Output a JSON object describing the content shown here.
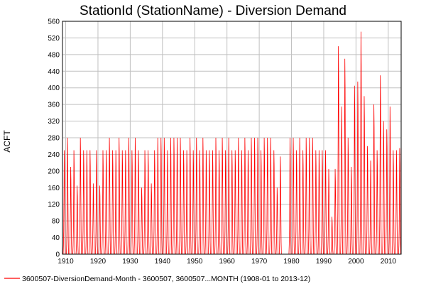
{
  "chart_data": {
    "type": "line",
    "title": "StationId (StationName) - Diversion Demand",
    "ylabel": "ACFT",
    "xlabel": "",
    "x_range": [
      "1908-01",
      "2013-12"
    ],
    "xlim": [
      1909,
      2014
    ],
    "ylim": [
      0,
      560
    ],
    "x_ticks": [
      1910,
      1920,
      1930,
      1940,
      1950,
      1960,
      1970,
      1980,
      1990,
      2000,
      2010
    ],
    "y_ticks": [
      0,
      40,
      80,
      120,
      160,
      200,
      240,
      280,
      320,
      360,
      400,
      440,
      480,
      520,
      560
    ],
    "grid": true,
    "legend_position": "bottom-left",
    "series": [
      {
        "name": "3600507-DiversionDemand-Month - 3600507, 3600507...MONTH (1908-01 to 2013-12)",
        "color": "#ff0000",
        "frequency": "monthly",
        "seasonal_profile": [
          0,
          0,
          0,
          0.08,
          0.22,
          0.55,
          1.0,
          0.85,
          0.45,
          0.12,
          0,
          0
        ],
        "annual_peaks": [
          {
            "year": 1909,
            "value": 250
          },
          {
            "year": 1910,
            "value": 280
          },
          {
            "year": 1911,
            "value": 210
          },
          {
            "year": 1912,
            "value": 250
          },
          {
            "year": 1913,
            "value": 165
          },
          {
            "year": 1914,
            "value": 280
          },
          {
            "year": 1915,
            "value": 250
          },
          {
            "year": 1916,
            "value": 250
          },
          {
            "year": 1917,
            "value": 250
          },
          {
            "year": 1918,
            "value": 170
          },
          {
            "year": 1919,
            "value": 250
          },
          {
            "year": 1920,
            "value": 165
          },
          {
            "year": 1921,
            "value": 250
          },
          {
            "year": 1922,
            "value": 250
          },
          {
            "year": 1923,
            "value": 280
          },
          {
            "year": 1924,
            "value": 250
          },
          {
            "year": 1925,
            "value": 250
          },
          {
            "year": 1926,
            "value": 280
          },
          {
            "year": 1927,
            "value": 250
          },
          {
            "year": 1928,
            "value": 250
          },
          {
            "year": 1929,
            "value": 280
          },
          {
            "year": 1930,
            "value": 250
          },
          {
            "year": 1931,
            "value": 280
          },
          {
            "year": 1932,
            "value": 250
          },
          {
            "year": 1933,
            "value": 160
          },
          {
            "year": 1934,
            "value": 250
          },
          {
            "year": 1935,
            "value": 250
          },
          {
            "year": 1936,
            "value": 170
          },
          {
            "year": 1937,
            "value": 250
          },
          {
            "year": 1938,
            "value": 280
          },
          {
            "year": 1939,
            "value": 280
          },
          {
            "year": 1940,
            "value": 280
          },
          {
            "year": 1941,
            "value": 250
          },
          {
            "year": 1942,
            "value": 280
          },
          {
            "year": 1943,
            "value": 280
          },
          {
            "year": 1944,
            "value": 280
          },
          {
            "year": 1945,
            "value": 280
          },
          {
            "year": 1946,
            "value": 250
          },
          {
            "year": 1947,
            "value": 250
          },
          {
            "year": 1948,
            "value": 280
          },
          {
            "year": 1949,
            "value": 250
          },
          {
            "year": 1950,
            "value": 280
          },
          {
            "year": 1951,
            "value": 250
          },
          {
            "year": 1952,
            "value": 280
          },
          {
            "year": 1953,
            "value": 250
          },
          {
            "year": 1954,
            "value": 250
          },
          {
            "year": 1955,
            "value": 250
          },
          {
            "year": 1956,
            "value": 280
          },
          {
            "year": 1957,
            "value": 250
          },
          {
            "year": 1958,
            "value": 280
          },
          {
            "year": 1959,
            "value": 250
          },
          {
            "year": 1960,
            "value": 280
          },
          {
            "year": 1961,
            "value": 250
          },
          {
            "year": 1962,
            "value": 250
          },
          {
            "year": 1963,
            "value": 280
          },
          {
            "year": 1964,
            "value": 250
          },
          {
            "year": 1965,
            "value": 280
          },
          {
            "year": 1966,
            "value": 250
          },
          {
            "year": 1967,
            "value": 280
          },
          {
            "year": 1968,
            "value": 280
          },
          {
            "year": 1969,
            "value": 280
          },
          {
            "year": 1970,
            "value": 250
          },
          {
            "year": 1971,
            "value": 280
          },
          {
            "year": 1972,
            "value": 280
          },
          {
            "year": 1973,
            "value": 280
          },
          {
            "year": 1974,
            "value": 250
          },
          {
            "year": 1975,
            "value": 160
          },
          {
            "year": 1976,
            "value": 235
          },
          {
            "year": 1977,
            "value": 0
          },
          {
            "year": 1978,
            "value": 0
          },
          {
            "year": 1979,
            "value": 280
          },
          {
            "year": 1980,
            "value": 280
          },
          {
            "year": 1981,
            "value": 250
          },
          {
            "year": 1982,
            "value": 280
          },
          {
            "year": 1983,
            "value": 250
          },
          {
            "year": 1984,
            "value": 280
          },
          {
            "year": 1985,
            "value": 280
          },
          {
            "year": 1986,
            "value": 280
          },
          {
            "year": 1987,
            "value": 250
          },
          {
            "year": 1988,
            "value": 250
          },
          {
            "year": 1989,
            "value": 250
          },
          {
            "year": 1990,
            "value": 250
          },
          {
            "year": 1991,
            "value": 205
          },
          {
            "year": 1992,
            "value": 90
          },
          {
            "year": 1993,
            "value": 205
          },
          {
            "year": 1994,
            "value": 500
          },
          {
            "year": 1995,
            "value": 355
          },
          {
            "year": 1996,
            "value": 470
          },
          {
            "year": 1997,
            "value": 280
          },
          {
            "year": 1998,
            "value": 210
          },
          {
            "year": 1999,
            "value": 405
          },
          {
            "year": 2000,
            "value": 415
          },
          {
            "year": 2001,
            "value": 535
          },
          {
            "year": 2002,
            "value": 380
          },
          {
            "year": 2003,
            "value": 260
          },
          {
            "year": 2004,
            "value": 225
          },
          {
            "year": 2005,
            "value": 360
          },
          {
            "year": 2006,
            "value": 250
          },
          {
            "year": 2007,
            "value": 430
          },
          {
            "year": 2008,
            "value": 320
          },
          {
            "year": 2009,
            "value": 300
          },
          {
            "year": 2010,
            "value": 355
          },
          {
            "year": 2011,
            "value": 250
          },
          {
            "year": 2012,
            "value": 250
          },
          {
            "year": 2013,
            "value": 255
          }
        ]
      }
    ]
  }
}
